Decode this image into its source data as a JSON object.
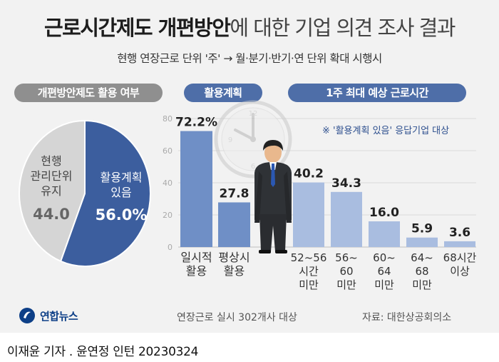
{
  "header": {
    "title_bold": "근로시간제도 개편방안",
    "title_rest": "에 대한 기업 의견 조사 결과",
    "subtitle": "현행 연장근로 단위 '주' → 월·분기·반기·연 단위 확대 시행시"
  },
  "pills": {
    "pie": "개편방안제도 활용 여부",
    "plan": "활용계획",
    "hours": "1주 최대 예상 근로시간"
  },
  "note": "※ '활용계획 있음' 응답기업 대상",
  "footer": {
    "sample": "연장근로 실시 302개사 대상",
    "source": "자료: 대한상공회의소",
    "logo": "연합뉴스",
    "credit": "이재윤 기자 . 윤연정 인턴 20230324"
  },
  "colors": {
    "pie_plan": "#3c5e9e",
    "pie_keep": "#d5d5d5",
    "bar_plan": "#6f8fc6",
    "bar_hours": "#a9bde0",
    "pill_blue": "#4e6ea8",
    "pill_gray": "#8f8f8f"
  },
  "chart_data": [
    {
      "type": "pie",
      "title": "개편방안제도 활용 여부",
      "slices": [
        {
          "label_lines": [
            "활용계획",
            "있음"
          ],
          "value": 56.0,
          "display": "56.0%"
        },
        {
          "label_lines": [
            "현행",
            "관리단위",
            "유지"
          ],
          "value": 44.0,
          "display": "44.0"
        }
      ]
    },
    {
      "type": "bar",
      "title": "활용계획",
      "ylim": [
        0,
        80
      ],
      "yticks": [
        0,
        20,
        40,
        60,
        80
      ],
      "grid": true,
      "categories": [
        {
          "lines": [
            "일시적",
            "활용"
          ]
        },
        {
          "lines": [
            "평상시",
            "활용"
          ]
        }
      ],
      "values": [
        72.2,
        27.8
      ],
      "labels": [
        "72.2%",
        "27.8"
      ]
    },
    {
      "type": "bar",
      "title": "1주 최대 예상 근로시간",
      "ylim": [
        0,
        80
      ],
      "categories": [
        {
          "lines": [
            "52~56",
            "시간",
            "미만"
          ]
        },
        {
          "lines": [
            "56~",
            "60",
            "미만"
          ]
        },
        {
          "lines": [
            "60~",
            "64",
            "미만"
          ]
        },
        {
          "lines": [
            "64~",
            "68",
            "미만"
          ]
        },
        {
          "lines": [
            "68시간",
            "이상"
          ]
        }
      ],
      "values": [
        40.2,
        34.3,
        16.0,
        5.9,
        3.6
      ],
      "labels": [
        "40.2",
        "34.3",
        "16.0",
        "5.9",
        "3.6"
      ]
    }
  ]
}
